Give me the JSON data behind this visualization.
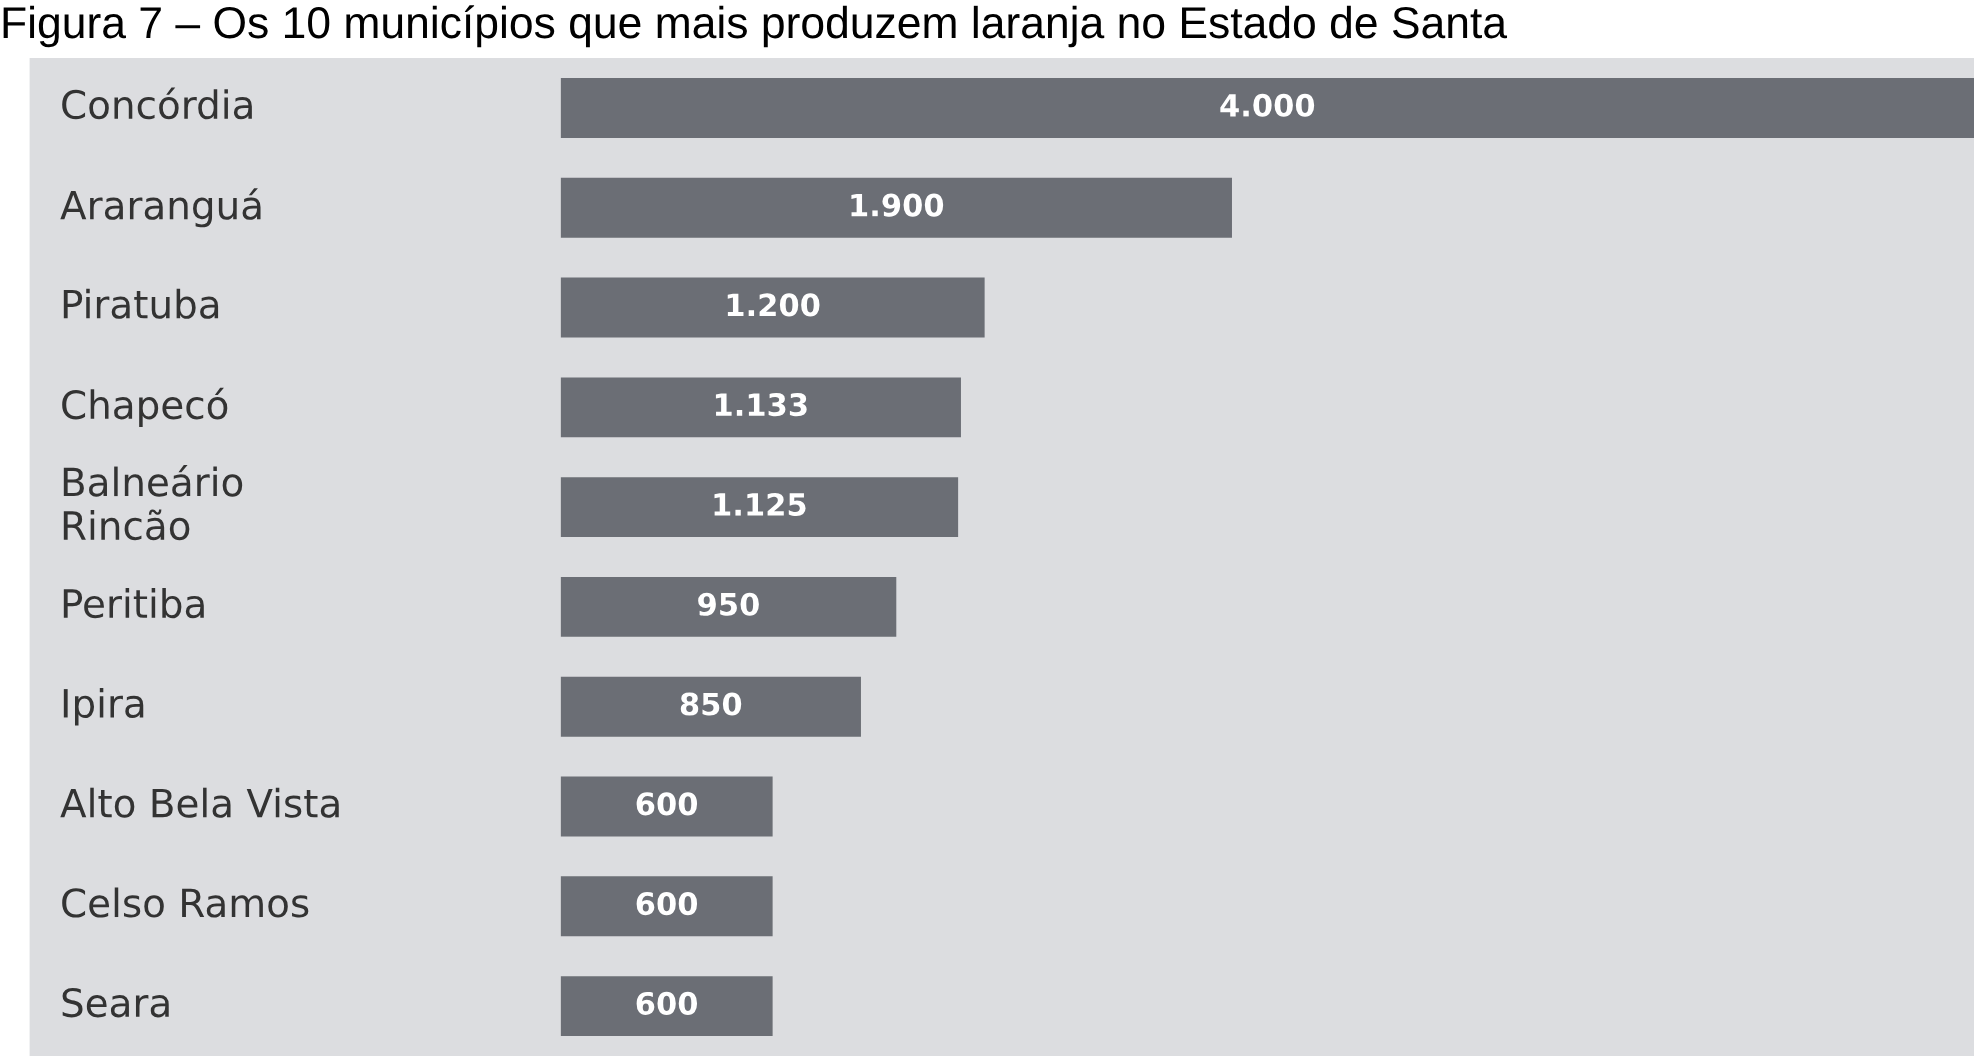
{
  "chart_data": {
    "type": "bar",
    "orientation": "horizontal",
    "title": "Figura 7 – Os 10 municípios que mais produzem laranja no Estado de Santa",
    "categories": [
      "Concórdia",
      "Araranguá",
      "Piratuba",
      "Chapecó",
      "Balneário\nRincão",
      "Peritiba",
      "Ipira",
      "Alto Bela Vista",
      "Celso Ramos",
      "Seara"
    ],
    "values": [
      4000,
      1900,
      1200,
      1133,
      1125,
      950,
      850,
      600,
      600,
      600
    ],
    "value_labels": [
      "4.000",
      "1.900",
      "1.200",
      "1.133",
      "1.125",
      "950",
      "850",
      "600",
      "600",
      "600"
    ],
    "color": "#6b6e75",
    "grid": false,
    "tick_labels": "y"
  }
}
